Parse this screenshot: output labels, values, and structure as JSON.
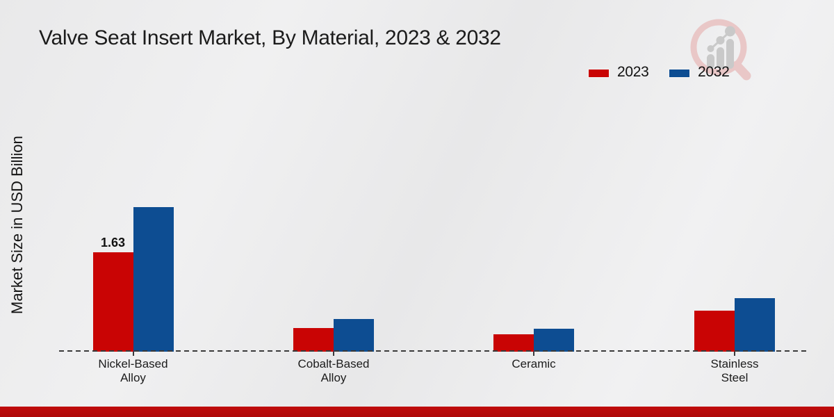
{
  "title": "Valve Seat Insert Market, By Material, 2023 & 2032",
  "watermark_icon": "magnifier-growth-chart-logo",
  "footer": {
    "accent_color": "#b60909"
  },
  "chart_data": {
    "type": "bar",
    "title": "Valve Seat Insert Market, By Material, 2023 & 2032",
    "ylabel": "Market Size in USD Billion",
    "xlabel": "",
    "categories": [
      "Nickel-Based\nAlloy",
      "Cobalt-Based\nAlloy",
      "Ceramic",
      "Stainless\nSteel"
    ],
    "series": [
      {
        "name": "2023",
        "color": "#c90404",
        "values": [
          1.63,
          0.39,
          0.29,
          0.67
        ]
      },
      {
        "name": "2032",
        "color": "#0d4d92",
        "values": [
          2.37,
          0.54,
          0.38,
          0.88
        ]
      }
    ],
    "bar_labels": [
      {
        "series": 0,
        "category": 0,
        "text": "1.63"
      }
    ],
    "ylim": [
      0,
      2.6
    ],
    "y_axis_ticks_visible": false,
    "grid": false,
    "legend_position": "top-right",
    "baseline_style": "dashed"
  }
}
